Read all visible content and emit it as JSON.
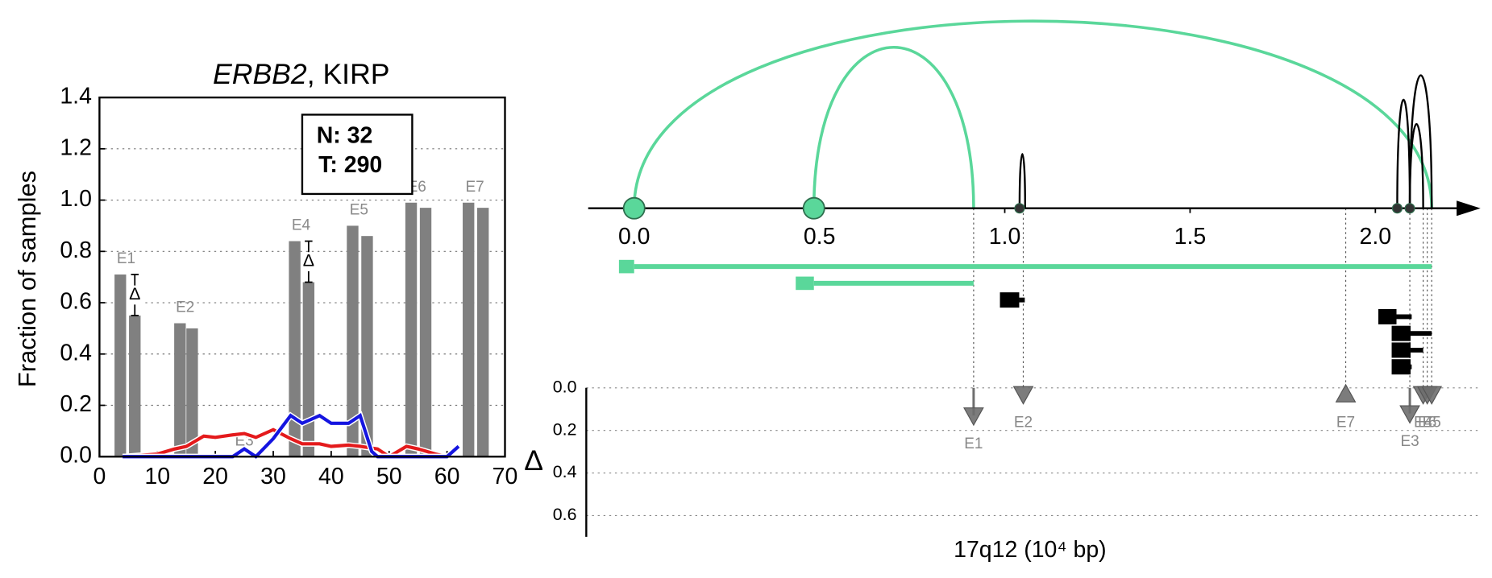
{
  "chart_data": [
    {
      "type": "bar",
      "title": [
        "ERBB2",
        ", KIRP"
      ],
      "ylabel": "Fraction of samples",
      "xlim": [
        0,
        70
      ],
      "xticks": [
        0,
        10,
        20,
        30,
        40,
        50,
        60,
        70
      ],
      "ylim": [
        0,
        1.4
      ],
      "yticks": [
        {
          "value": 0,
          "label": "0.0"
        },
        {
          "value": 0.2,
          "label": "0.2"
        },
        {
          "value": 0.4,
          "label": "0.4"
        },
        {
          "value": 0.6,
          "label": "0.6"
        },
        {
          "value": 0.8,
          "label": "0.8"
        },
        {
          "value": 1.0,
          "label": "1.0"
        },
        {
          "value": 1.2,
          "label": "1.2"
        },
        {
          "value": 1.4,
          "label": "1.4"
        }
      ],
      "grid": true,
      "categories": [
        "E1",
        "E2",
        "E3",
        "E4",
        "E5",
        "E6",
        "E7"
      ],
      "category_x": [
        4.6,
        14.8,
        25.0,
        34.8,
        44.8,
        54.8,
        64.8
      ],
      "series": [
        {
          "color": "#808080",
          "x": [
            3.6,
            13.9,
            null,
            33.7,
            43.7,
            53.8,
            63.7
          ],
          "values": [
            0.71,
            0.52,
            null,
            0.84,
            0.9,
            0.99,
            0.99
          ]
        },
        {
          "color": "#808080",
          "x": [
            6.1,
            16.0,
            null,
            36.1,
            46.2,
            56.3,
            66.2
          ],
          "values": [
            0.55,
            0.5,
            null,
            0.68,
            0.86,
            0.97,
            0.97
          ]
        }
      ],
      "line_series": [
        {
          "color": "#e41a1c",
          "x": [
            4,
            7,
            10,
            13,
            15,
            18,
            20,
            23,
            25,
            27,
            30,
            33,
            35,
            38,
            40,
            43,
            45,
            48,
            50,
            53,
            55,
            58,
            60
          ],
          "values": [
            0,
            0.005,
            0.01,
            0.03,
            0.04,
            0.08,
            0.075,
            0.085,
            0.09,
            0.075,
            0.105,
            0.07,
            0.05,
            0.05,
            0.04,
            0.045,
            0.04,
            0.03,
            0,
            0.04,
            0.03,
            0.01,
            0
          ]
        },
        {
          "color": "#1515e0",
          "x": [
            4,
            10,
            20,
            23,
            25,
            27,
            30,
            33,
            35,
            38,
            40,
            43,
            45,
            47,
            48,
            50,
            55,
            60,
            62
          ],
          "values": [
            0,
            0,
            0,
            0,
            0.03,
            0,
            0.07,
            0.16,
            0.13,
            0.16,
            0.13,
            0.13,
            0.16,
            0.02,
            0,
            0,
            0,
            0,
            0.04
          ]
        }
      ],
      "annotations": [
        {
          "text": "Δ",
          "x": 6.1,
          "y": [
            0.71,
            0.55
          ]
        },
        {
          "text": "Δ",
          "x": 36.1,
          "y": [
            0.84,
            0.68
          ]
        }
      ],
      "box_text": [
        "N: 32",
        "T: 290"
      ]
    },
    {
      "type": "junction",
      "xlabel": "17q12 (10⁴ bp)",
      "xlim": [
        -0.124,
        2.276
      ],
      "xticks": [
        {
          "value": 0,
          "label": "0.0"
        },
        {
          "value": 0.5,
          "label": "0.5"
        },
        {
          "value": 1.0,
          "label": "1.0"
        },
        {
          "value": 1.5,
          "label": "1.5"
        },
        {
          "value": 2.0,
          "label": "2.0"
        }
      ],
      "arcs": [
        {
          "start": 0,
          "end": 2.152,
          "height": 1.0,
          "color": "#5ad79a"
        },
        {
          "start": 0.485,
          "end": 0.916,
          "height": 0.86,
          "color": "#5ad79a"
        },
        {
          "start": 1.04,
          "end": 1.055,
          "height": 0.29,
          "color": "#000000"
        },
        {
          "start": 2.059,
          "end": 2.093,
          "height": 0.58,
          "color": "#000000"
        },
        {
          "start": 2.093,
          "end": 2.129,
          "height": 0.45,
          "color": "#000000"
        },
        {
          "start": 2.093,
          "end": 2.152,
          "height": 0.71,
          "color": "#000000"
        }
      ],
      "sites": [
        {
          "x": 0,
          "color": "#5ad79a"
        },
        {
          "x": 0.485,
          "color": "#5ad79a"
        },
        {
          "x": 1.04,
          "color": "#333333"
        },
        {
          "x": 2.059,
          "color": "#333333"
        },
        {
          "x": 2.093,
          "color": "#333333"
        }
      ],
      "isoforms": [
        {
          "start": -0.041,
          "thick_end": 0,
          "end": 2.152,
          "color": "#5ad79a"
        },
        {
          "start": 0.436,
          "thick_end": 0.485,
          "end": 0.916,
          "color": "#5ad79a"
        },
        {
          "start": 0.987,
          "thick_end": 1.039,
          "end": 1.054,
          "color": "#000000"
        },
        {
          "start": 2.008,
          "thick_end": 2.057,
          "end": 2.098,
          "color": "#000000"
        },
        {
          "start": 2.044,
          "thick_end": 2.095,
          "end": 2.152,
          "color": "#000000"
        },
        {
          "start": 2.044,
          "thick_end": 2.095,
          "end": 2.129,
          "color": "#000000"
        },
        {
          "start": 2.044,
          "thick_end": 2.095,
          "end": 2.098,
          "color": "#000000"
        }
      ],
      "delta": {
        "ylabel": "Δ",
        "ylim": [
          0,
          0.7
        ],
        "yticks": [
          {
            "value": 0,
            "label": "0.0"
          },
          {
            "value": 0.2,
            "label": "0.2"
          },
          {
            "value": 0.4,
            "label": "0.4"
          },
          {
            "value": 0.6,
            "label": "0.6"
          }
        ],
        "color": "#6e6e6e",
        "exons": [
          {
            "name": "E1",
            "x": 0.916,
            "value": 0.13,
            "marker": "v"
          },
          {
            "name": "E2",
            "x": 1.05,
            "value": 0.03,
            "marker": "v"
          },
          {
            "name": "E7",
            "x": 1.92,
            "value": 0.03,
            "marker": "^"
          },
          {
            "name": "E3",
            "x": 2.093,
            "value": 0.12,
            "marker": "v"
          },
          {
            "name": "E4",
            "x": 2.129,
            "value": 0.03,
            "marker": "v"
          },
          {
            "name": "E6",
            "x": 2.14,
            "value": 0.03,
            "marker": "v"
          },
          {
            "name": "E5",
            "x": 2.152,
            "value": 0.03,
            "marker": "v"
          }
        ]
      }
    }
  ]
}
